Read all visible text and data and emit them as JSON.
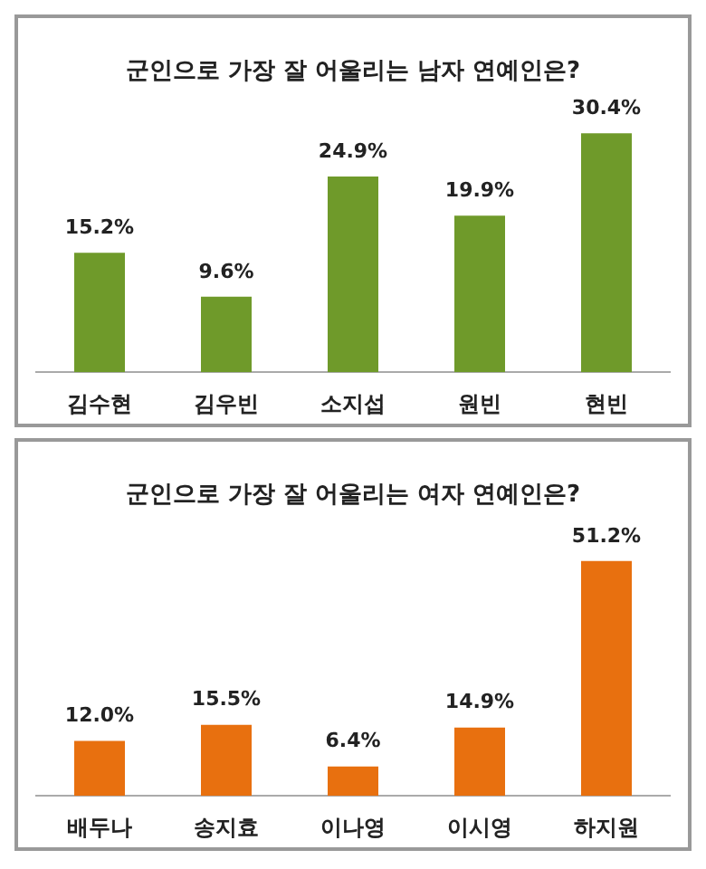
{
  "chart_data": [
    {
      "type": "bar",
      "title": "군인으로 가장 잘 어울리는 남자 연예인은?",
      "categories": [
        "김수현",
        "김우빈",
        "소지섭",
        "원빈",
        "현빈"
      ],
      "values": [
        15.2,
        9.6,
        24.9,
        19.9,
        30.4
      ],
      "value_labels": [
        "15.2%",
        "9.6%",
        "24.9%",
        "19.9%",
        "30.4%"
      ],
      "color": "#6f9a2a",
      "tick_labels": "x",
      "grid": false,
      "legend": false
    },
    {
      "type": "bar",
      "title": "군인으로 가장 잘 어울리는 여자 연예인은?",
      "categories": [
        "배두나",
        "송지효",
        "이나영",
        "이시영",
        "하지원"
      ],
      "values": [
        12.0,
        15.5,
        6.4,
        14.9,
        51.2
      ],
      "value_labels": [
        "12.0%",
        "15.5%",
        "6.4%",
        "14.9%",
        "51.2%"
      ],
      "color": "#e8700f",
      "tick_labels": "x",
      "grid": false,
      "legend": false
    }
  ]
}
